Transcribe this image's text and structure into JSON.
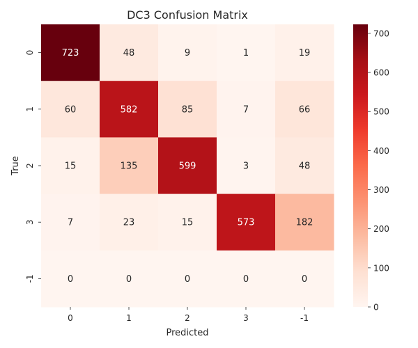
{
  "chart_data": {
    "type": "heatmap",
    "title": "DC3 Confusion Matrix",
    "xlabel": "Predicted",
    "ylabel": "True",
    "x_categories": [
      "0",
      "1",
      "2",
      "3",
      "-1"
    ],
    "y_categories": [
      "0",
      "1",
      "2",
      "3",
      "-1"
    ],
    "values": [
      [
        723,
        48,
        9,
        1,
        19
      ],
      [
        60,
        582,
        85,
        7,
        66
      ],
      [
        15,
        135,
        599,
        3,
        48
      ],
      [
        7,
        23,
        15,
        573,
        182
      ],
      [
        0,
        0,
        0,
        0,
        0
      ]
    ],
    "colormap": "Reds",
    "color_range": [
      0,
      723
    ],
    "colorbar_ticks": [
      0,
      100,
      200,
      300,
      400,
      500,
      600,
      700
    ],
    "annotations": true,
    "grid": false,
    "legend": "colorbar-right"
  }
}
